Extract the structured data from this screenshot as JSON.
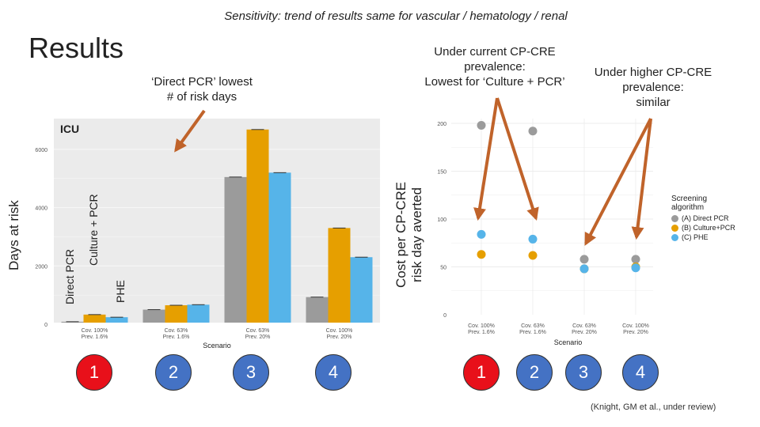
{
  "header": {
    "subtitle": "Sensitivity: trend of results same for vascular / hematology / renal",
    "title": "Results"
  },
  "callouts": {
    "direct_pcr": "‘Direct PCR’ lowest\n# of risk days",
    "current_prev": "Under current CP-CRE\nprevalence:\nLowest for ‘Culture + PCR’",
    "higher_prev": "Under higher CP-CRE\nprevalence:\nsimilar"
  },
  "colors": {
    "grey": "#9b9b9b",
    "orange": "#e69f00",
    "blue": "#56b4e9",
    "arrow": "#c0632a",
    "red_badge": "#e8101a",
    "blue_badge": "#4472c4"
  },
  "badges": {
    "left": [
      "1",
      "2",
      "3",
      "4"
    ],
    "right": [
      "1",
      "2",
      "3",
      "4"
    ]
  },
  "citation": "(Knight, GM et al., under review)",
  "chart_data": [
    {
      "type": "bar",
      "panel_label": "ICU",
      "ylabel": "Days at risk",
      "xlabel": "Scenario",
      "categories": [
        "Cov. 100%\nPrev. 1.6%",
        "Cov. 63%\nPrev. 1.6%",
        "Cov. 63%\nPrev. 20%",
        "Cov. 100%\nPrev. 20%"
      ],
      "series": [
        {
          "name": "Direct PCR",
          "color": "#9b9b9b",
          "values": [
            85,
            500,
            5050,
            930
          ]
        },
        {
          "name": "Culture + PCR",
          "color": "#e69f00",
          "values": [
            330,
            650,
            6680,
            3300
          ]
        },
        {
          "name": "PHE",
          "color": "#56b4e9",
          "values": [
            240,
            670,
            5200,
            2300
          ]
        }
      ],
      "yticks": [
        0,
        2000,
        4000,
        6000
      ],
      "ylim": [
        0,
        7000
      ],
      "grid": true
    },
    {
      "type": "scatter",
      "ylabel": "Cost per CP-CRE\nrisk day averted",
      "xlabel": "Scenario",
      "categories": [
        "Cov. 100%\nPrev. 1.6%",
        "Cov. 63%\nPrev. 1.6%",
        "Cov. 63%\nPrev. 20%",
        "Cov. 100%\nPrev. 20%"
      ],
      "series": [
        {
          "name": "(A) Direct PCR",
          "color": "#9b9b9b",
          "values": [
            198,
            192,
            58,
            58
          ]
        },
        {
          "name": "(B) Culture+PCR",
          "color": "#e69f00",
          "values": [
            63,
            62,
            48,
            50
          ]
        },
        {
          "name": "(C) PHE",
          "color": "#56b4e9",
          "values": [
            84,
            79,
            48,
            49
          ]
        }
      ],
      "yticks": [
        0,
        50,
        100,
        150,
        200
      ],
      "ylim": [
        0,
        205
      ],
      "legend_title": "Screening\nalgorithm",
      "legend_position": "right",
      "grid": true
    }
  ]
}
